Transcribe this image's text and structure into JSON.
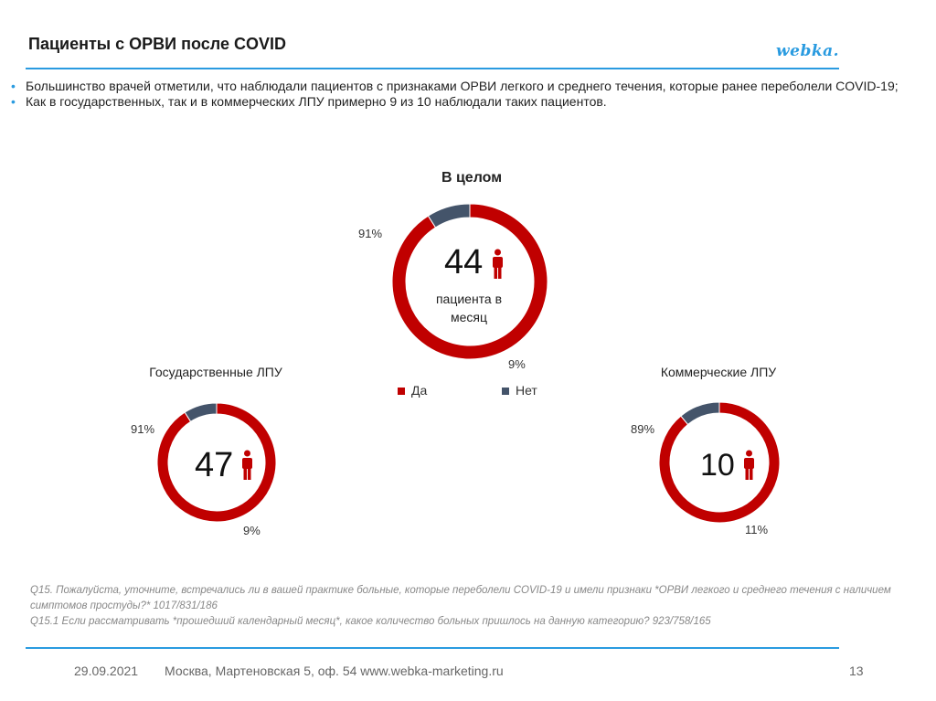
{
  "header": {
    "title": "Пациенты с ОРВИ после COVID",
    "logo_text": "webka."
  },
  "bullets": [
    "Большинство врачей отметили, что наблюдали пациентов с признаками ОРВИ легкого и среднего течения, которые ранее переболели COVID-19;",
    "Как в государственных, так и в коммерческих ЛПУ примерно 9 из 10 наблюдали таких пациентов."
  ],
  "colors": {
    "yes": "#c00000",
    "no": "#44546a",
    "accent": "#2a9be0"
  },
  "icon": "person-icon",
  "chart_data": [
    {
      "type": "pie",
      "title": "В целом",
      "categories": [
        "Да",
        "Нет"
      ],
      "values": [
        91,
        9
      ],
      "labels": [
        "91%",
        "9%"
      ],
      "center_value": "44",
      "center_caption": "пациента в месяц"
    },
    {
      "type": "pie",
      "title": "Государственные ЛПУ",
      "categories": [
        "Да",
        "Нет"
      ],
      "values": [
        91,
        9
      ],
      "labels": [
        "91%",
        "9%"
      ],
      "center_value": "47"
    },
    {
      "type": "pie",
      "title": "Коммерческие ЛПУ",
      "categories": [
        "Да",
        "Нет"
      ],
      "values": [
        89,
        11
      ],
      "labels": [
        "89%",
        "11%"
      ],
      "center_value": "10"
    }
  ],
  "legend": {
    "yes_label": "Да",
    "no_label": "Нет"
  },
  "notes": [
    "Q15. Пожалуйста, уточните, встречались ли в вашей практике больные, которые переболели COVID-19 и имели признаки *ОРВИ легкого и среднего течения с наличием симптомов простуды?* 1017/831/186",
    "Q15.1 Если рассматривать *прошедший календарный месяц*, какое количество больных пришлось на данную категорию? 923/758/165"
  ],
  "footer": {
    "date": "29.09.2021",
    "address": "Москва, Мартеновская 5, оф. 54 www.webka-marketing.ru",
    "page": "13"
  }
}
